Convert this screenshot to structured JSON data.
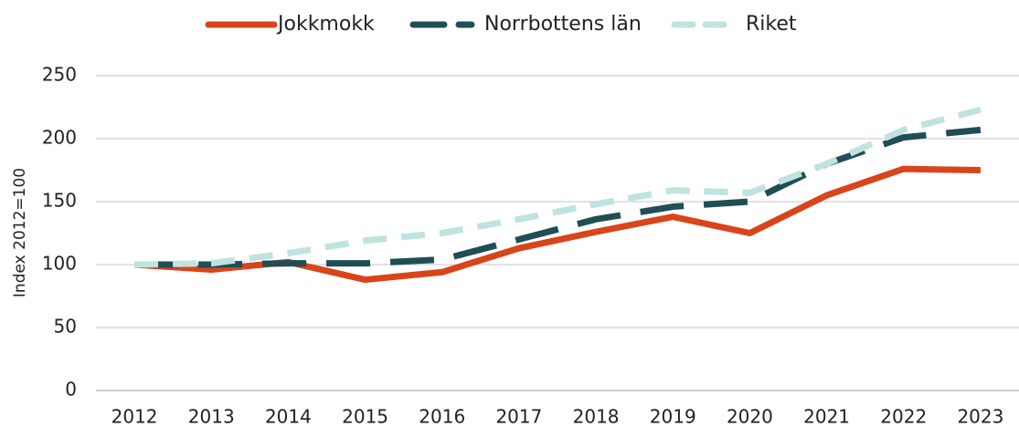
{
  "chart_data": {
    "type": "line",
    "y_label": "Index 2012=100",
    "categories": [
      "2012",
      "2013",
      "2014",
      "2015",
      "2016",
      "2017",
      "2018",
      "2019",
      "2020",
      "2021",
      "2022",
      "2023"
    ],
    "series": [
      {
        "name": "Jokkmokk",
        "color": "#d9441a",
        "dash": "solid",
        "values": [
          100,
          96,
          102,
          88,
          94,
          113,
          126,
          138,
          125,
          155,
          176,
          175
        ]
      },
      {
        "name": "Norrbottens län",
        "color": "#1f4e56",
        "dash": "dashed",
        "values": [
          100,
          100,
          101,
          101,
          104,
          120,
          136,
          146,
          150,
          180,
          201,
          207
        ]
      },
      {
        "name": "Riket",
        "color": "#bfe3df",
        "dash": "dashed",
        "values": [
          100,
          101,
          109,
          119,
          125,
          136,
          148,
          159,
          157,
          180,
          207,
          223
        ]
      }
    ],
    "ylim": [
      0,
      250
    ],
    "yticks": [
      0,
      50,
      100,
      150,
      200,
      250
    ],
    "grid": true,
    "legend": "top"
  }
}
